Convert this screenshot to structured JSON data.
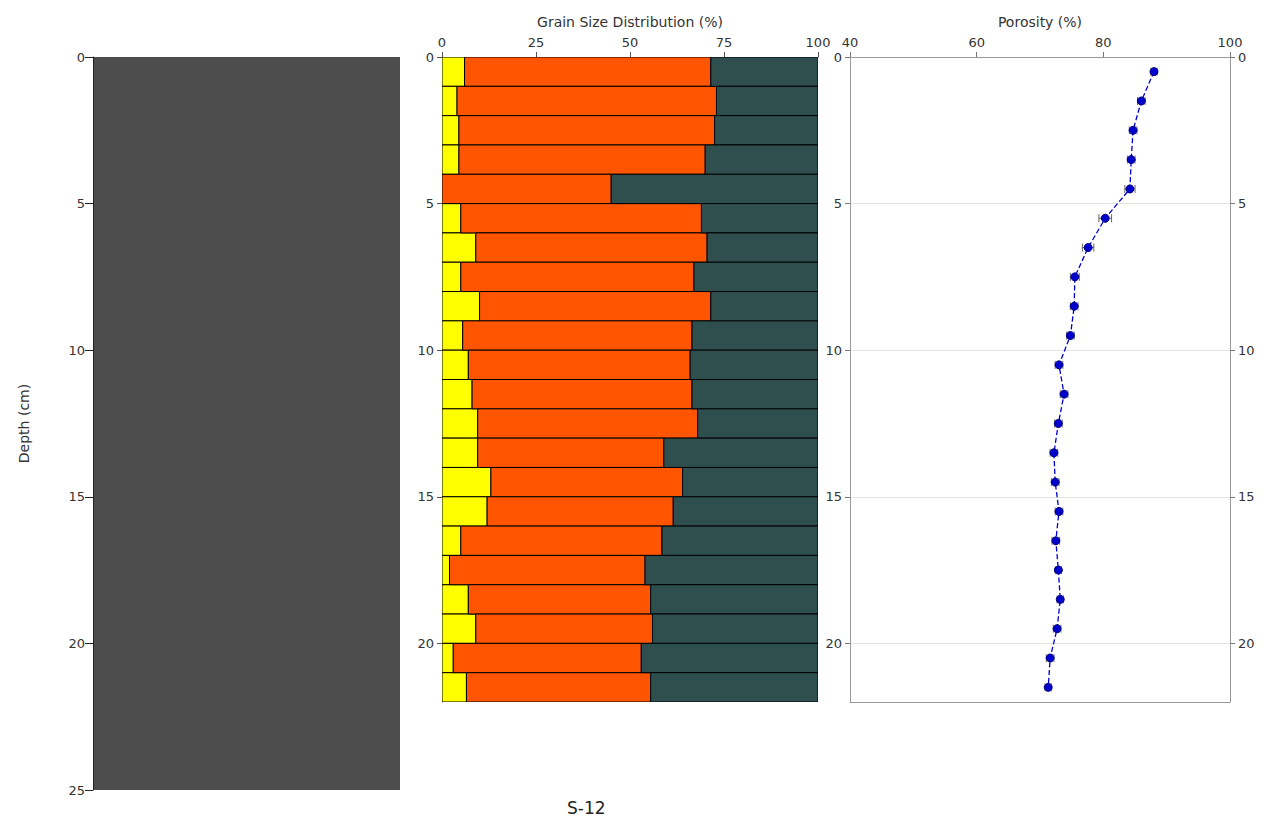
{
  "title": "S-12",
  "chart_data": [
    {
      "type": "image",
      "ylabel": "Depth (cm)",
      "ylim": [
        0,
        25
      ],
      "yticks": [
        0,
        5,
        10,
        15,
        20,
        25
      ]
    },
    {
      "type": "bar",
      "orientation": "horizontal",
      "stacked": true,
      "title": "Grain Size Distribution (%)",
      "xlim": [
        0,
        100
      ],
      "xticks": [
        0,
        25,
        50,
        75,
        100
      ],
      "ylim": [
        0,
        22
      ],
      "yticks": [
        0,
        5,
        10,
        15,
        20
      ],
      "depth_top": [
        0,
        1,
        2,
        3,
        4,
        5,
        6,
        7,
        8,
        9,
        10,
        11,
        12,
        13,
        14,
        15,
        16,
        17,
        18,
        19,
        20,
        21
      ],
      "depth_bottom": [
        1,
        2,
        3,
        4,
        5,
        6,
        7,
        8,
        9,
        10,
        11,
        12,
        13,
        14,
        15,
        16,
        17,
        18,
        19,
        20,
        21,
        22
      ],
      "series": [
        {
          "color": "#ffff00",
          "values": [
            6,
            4,
            4.5,
            4.5,
            0,
            5,
            9,
            5,
            10,
            5.5,
            7,
            8,
            9.5,
            9.5,
            13,
            12,
            5,
            2,
            7,
            9,
            3,
            6.5
          ]
        },
        {
          "color": "#ff5500",
          "values": [
            65.5,
            69,
            68,
            65.5,
            45,
            64,
            61.5,
            62,
            61.5,
            61,
            59,
            58.5,
            58.5,
            49.5,
            51,
            49.5,
            53.5,
            52,
            48.5,
            47,
            50,
            49
          ]
        },
        {
          "color": "#2f4f4f",
          "values": [
            28.5,
            27,
            27.5,
            30,
            55,
            31,
            29.5,
            33,
            28.5,
            33.5,
            34,
            33.5,
            32,
            41,
            36,
            38.5,
            41.5,
            46,
            44.5,
            44,
            47,
            44.5
          ]
        }
      ]
    },
    {
      "type": "line",
      "title": "Porosity (%)",
      "xlim": [
        40,
        100
      ],
      "xticks": [
        40,
        60,
        80,
        100
      ],
      "ylim": [
        0,
        22
      ],
      "yticks": [
        0,
        5,
        10,
        15,
        20
      ],
      "grid": true,
      "series": [
        {
          "color": "#0000cd",
          "marker": "circle",
          "line_style": "dashed",
          "x": [
            88,
            86,
            84.7,
            84.4,
            84.2,
            80.3,
            77.6,
            75.5,
            75.4,
            74.8,
            73,
            73.8,
            72.9,
            72.2,
            72.4,
            73,
            72.5,
            72.9,
            73.2,
            72.7,
            71.6,
            71.3
          ],
          "y": [
            0.5,
            1.5,
            2.5,
            3.5,
            4.5,
            5.5,
            6.5,
            7.5,
            8.5,
            9.5,
            10.5,
            11.5,
            12.5,
            13.5,
            14.5,
            15.5,
            16.5,
            17.5,
            18.5,
            19.5,
            20.5,
            21.5
          ],
          "x_error": [
            0.5,
            0.6,
            0.6,
            0.6,
            0.8,
            1.0,
            0.9,
            0.7,
            0.6,
            0.6,
            0.6,
            0.6,
            0.6,
            0.6,
            0.6,
            0.6,
            0.6,
            0.5,
            0.5,
            0.6,
            0.6,
            0.5
          ]
        }
      ]
    }
  ]
}
